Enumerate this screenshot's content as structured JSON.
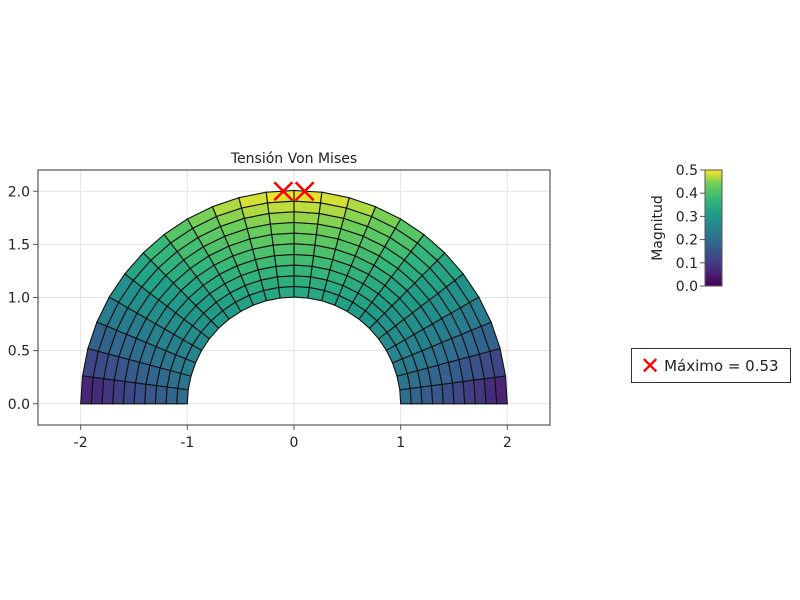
{
  "chart_data": {
    "type": "heatmap",
    "title": "Tensión Von Mises",
    "xlabel": "",
    "ylabel": "",
    "xlim": [
      -2.4,
      2.4
    ],
    "ylim": [
      -0.2,
      2.2
    ],
    "xticks": [
      "-2",
      "-1",
      "0",
      "1",
      "2"
    ],
    "yticks": [
      "0.0",
      "0.5",
      "1.0",
      "1.5",
      "2.0"
    ],
    "grid": true,
    "mesh": {
      "shape": "half-annulus",
      "inner_radius": 1,
      "outer_radius": 2,
      "radial_elements": 10,
      "angular_elements": 24
    },
    "field": {
      "description_values": {
        "inner_base": 0.2,
        "inner_apex": 0.33,
        "outer_base": 0.02,
        "outer_apex": 0.5
      }
    },
    "colorbar": {
      "label": "Magnitud",
      "range": [
        0.0,
        0.5
      ],
      "ticks": [
        "0.0",
        "0.1",
        "0.2",
        "0.3",
        "0.4",
        "0.5"
      ],
      "colormap": "viridis"
    },
    "max_markers": {
      "points": [
        [
          -0.1,
          2.0
        ],
        [
          0.1,
          2.0
        ]
      ],
      "color": "#ff0000",
      "symbol": "x"
    },
    "legend": {
      "label": "Máximo = 0.53",
      "placement": "right"
    }
  }
}
